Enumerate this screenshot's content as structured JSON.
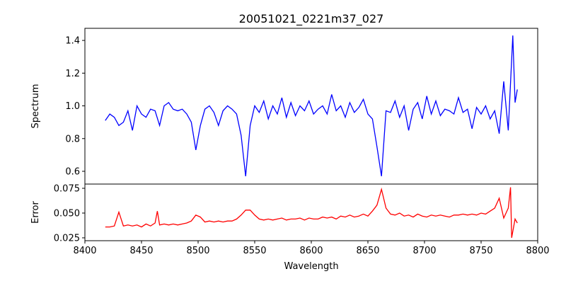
{
  "chart_data": [
    {
      "type": "line",
      "title": "20051021_0221m37_027",
      "xlabel": "",
      "ylabel": "Spectrum",
      "xlim": [
        8400,
        8800
      ],
      "ylim": [
        0.522,
        1.474
      ],
      "yticks": [
        0.6,
        0.8,
        1.0,
        1.2,
        1.4
      ],
      "ytick_labels": [
        "0.6",
        "0.8",
        "1.0",
        "1.2",
        "1.4"
      ],
      "grid": false,
      "series": [
        {
          "name": "Spectrum",
          "color": "#0000ff",
          "x": [
            8418,
            8422,
            8426,
            8430,
            8434,
            8438,
            8442,
            8446,
            8450,
            8454,
            8458,
            8462,
            8466,
            8470,
            8474,
            8478,
            8482,
            8486,
            8490,
            8494,
            8498,
            8502,
            8506,
            8510,
            8514,
            8518,
            8522,
            8526,
            8530,
            8534,
            8538,
            8542,
            8546,
            8550,
            8554,
            8558,
            8562,
            8566,
            8570,
            8574,
            8578,
            8582,
            8586,
            8590,
            8594,
            8598,
            8602,
            8606,
            8610,
            8614,
            8618,
            8622,
            8626,
            8630,
            8634,
            8638,
            8642,
            8646,
            8650,
            8654,
            8658,
            8662,
            8666,
            8670,
            8674,
            8678,
            8682,
            8686,
            8690,
            8694,
            8698,
            8702,
            8706,
            8710,
            8714,
            8718,
            8722,
            8726,
            8730,
            8734,
            8738,
            8742,
            8746,
            8750,
            8754,
            8758,
            8762,
            8766,
            8770,
            8774,
            8778,
            8780,
            8782
          ],
          "y": [
            0.91,
            0.95,
            0.93,
            0.88,
            0.9,
            0.97,
            0.85,
            1.0,
            0.95,
            0.93,
            0.98,
            0.97,
            0.88,
            1.0,
            1.02,
            0.98,
            0.97,
            0.98,
            0.95,
            0.9,
            0.73,
            0.88,
            0.98,
            1.0,
            0.96,
            0.88,
            0.97,
            1.0,
            0.98,
            0.95,
            0.82,
            0.57,
            0.88,
            1.0,
            0.96,
            1.03,
            0.92,
            1.0,
            0.95,
            1.05,
            0.93,
            1.02,
            0.94,
            1.0,
            0.97,
            1.03,
            0.95,
            0.98,
            1.0,
            0.95,
            1.07,
            0.97,
            1.0,
            0.93,
            1.02,
            0.96,
            0.99,
            1.04,
            0.95,
            0.92,
            0.75,
            0.57,
            0.97,
            0.96,
            1.03,
            0.93,
            1.0,
            0.85,
            0.98,
            1.02,
            0.92,
            1.06,
            0.95,
            1.03,
            0.94,
            0.98,
            0.97,
            0.95,
            1.05,
            0.96,
            0.98,
            0.86,
            0.99,
            0.95,
            1.0,
            0.92,
            0.97,
            0.83,
            1.15,
            0.85,
            1.43,
            1.02,
            1.1
          ]
        }
      ]
    },
    {
      "type": "line",
      "title": "",
      "xlabel": "Wavelength",
      "ylabel": "Error",
      "xlim": [
        8400,
        8800
      ],
      "ylim": [
        0.0221,
        0.0793
      ],
      "xticks": [
        8400,
        8450,
        8500,
        8550,
        8600,
        8650,
        8700,
        8750,
        8800
      ],
      "xtick_labels": [
        "8400",
        "8450",
        "8500",
        "8550",
        "8600",
        "8650",
        "8700",
        "8750",
        "8800"
      ],
      "yticks": [
        0.025,
        0.05,
        0.075
      ],
      "ytick_labels": [
        "0.025",
        "0.050",
        "0.075"
      ],
      "grid": false,
      "series": [
        {
          "name": "Error",
          "color": "#ff0000",
          "x": [
            8418,
            8422,
            8426,
            8430,
            8434,
            8438,
            8442,
            8446,
            8450,
            8454,
            8458,
            8462,
            8464,
            8466,
            8470,
            8474,
            8478,
            8482,
            8486,
            8490,
            8494,
            8498,
            8502,
            8506,
            8510,
            8514,
            8518,
            8522,
            8526,
            8530,
            8534,
            8538,
            8542,
            8546,
            8550,
            8554,
            8558,
            8562,
            8566,
            8570,
            8574,
            8578,
            8582,
            8586,
            8590,
            8594,
            8598,
            8602,
            8606,
            8610,
            8614,
            8618,
            8622,
            8626,
            8630,
            8634,
            8638,
            8642,
            8646,
            8650,
            8654,
            8658,
            8662,
            8666,
            8670,
            8674,
            8678,
            8682,
            8686,
            8690,
            8694,
            8698,
            8702,
            8706,
            8710,
            8714,
            8718,
            8722,
            8726,
            8730,
            8734,
            8738,
            8742,
            8746,
            8750,
            8754,
            8758,
            8762,
            8766,
            8770,
            8774,
            8776,
            8777,
            8780,
            8782
          ],
          "y": [
            0.036,
            0.036,
            0.037,
            0.051,
            0.037,
            0.038,
            0.037,
            0.038,
            0.036,
            0.039,
            0.037,
            0.04,
            0.052,
            0.038,
            0.039,
            0.038,
            0.039,
            0.038,
            0.039,
            0.04,
            0.042,
            0.048,
            0.046,
            0.041,
            0.042,
            0.041,
            0.042,
            0.041,
            0.042,
            0.042,
            0.044,
            0.048,
            0.053,
            0.053,
            0.048,
            0.044,
            0.043,
            0.044,
            0.043,
            0.044,
            0.045,
            0.043,
            0.044,
            0.044,
            0.045,
            0.043,
            0.045,
            0.044,
            0.044,
            0.046,
            0.045,
            0.046,
            0.044,
            0.047,
            0.046,
            0.048,
            0.046,
            0.047,
            0.049,
            0.047,
            0.052,
            0.058,
            0.074,
            0.055,
            0.049,
            0.048,
            0.05,
            0.047,
            0.048,
            0.046,
            0.049,
            0.047,
            0.046,
            0.048,
            0.047,
            0.048,
            0.047,
            0.046,
            0.048,
            0.048,
            0.049,
            0.048,
            0.049,
            0.048,
            0.05,
            0.049,
            0.052,
            0.055,
            0.065,
            0.045,
            0.055,
            0.076,
            0.025,
            0.044,
            0.04
          ]
        }
      ]
    }
  ]
}
